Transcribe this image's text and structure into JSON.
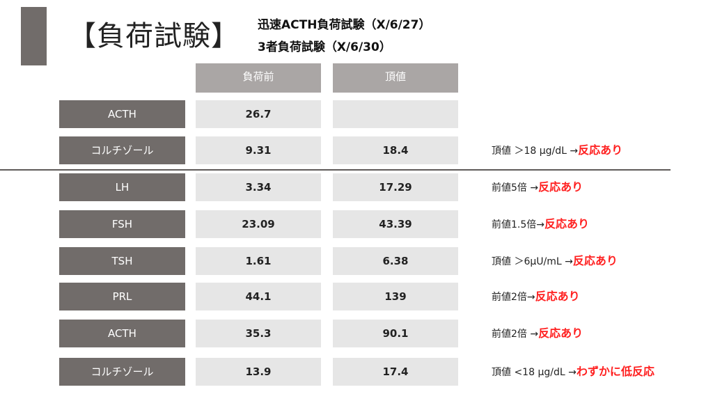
{
  "title": "【負荷試験】",
  "subtitles": [
    "迅速ACTH負荷試験（X/6/27）",
    "3者負荷試験（X/6/30）"
  ],
  "headers": {
    "before": "負荷前",
    "peak": "頂値"
  },
  "rows": [
    {
      "label": "ACTH",
      "before": "26.7",
      "peak": "",
      "note": "",
      "response": ""
    },
    {
      "label": "コルチゾール",
      "before": "9.31",
      "peak": "18.4",
      "note": "頂値 ＞18 μg/dL →",
      "response": "反応あり"
    },
    {
      "label": "LH",
      "before": "3.34",
      "peak": "17.29",
      "note": "前値5倍 →",
      "response": "反応あり"
    },
    {
      "label": "FSH",
      "before": "23.09",
      "peak": "43.39",
      "note": "前値1.5倍→",
      "response": "反応あり"
    },
    {
      "label": "TSH",
      "before": "1.61",
      "peak": "6.38",
      "note": "頂値 ＞6μU/mL →",
      "response": "反応あり"
    },
    {
      "label": "PRL",
      "before": "44.1",
      "peak": "139",
      "note": "前値2倍→",
      "response": "反応あり"
    },
    {
      "label": "ACTH",
      "before": "35.3",
      "peak": "90.1",
      "note": "前値2倍 →",
      "response": "反応あり"
    },
    {
      "label": "コルチゾール",
      "before": "13.9",
      "peak": "17.4",
      "note": "頂値 <18 μg/dL →",
      "response": "わずかに低反応"
    }
  ],
  "colors": {
    "label_bg": "#716c6a",
    "header_bg": "#aaa6a5",
    "cell_bg": "#e6e6e6",
    "response": "#ff2020"
  }
}
